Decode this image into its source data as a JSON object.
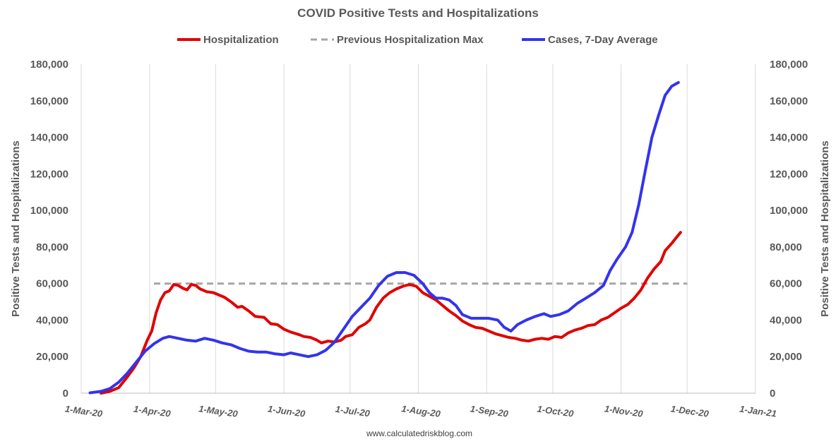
{
  "chart_data": {
    "type": "line",
    "title": "COVID Positive Tests and Hospitalizations",
    "ylabel": "Positive Tests and Hospitalizations",
    "ylabel_right": "Positive Tests and Hospitalizations",
    "xlabel": "",
    "ylim": [
      0,
      180000
    ],
    "y_ticks": [
      0,
      20000,
      40000,
      60000,
      80000,
      100000,
      120000,
      140000,
      160000,
      180000
    ],
    "y_tick_labels": [
      "0",
      "20,000",
      "40,000",
      "60,000",
      "80,000",
      "100,000",
      "120,000",
      "140,000",
      "160,000",
      "180,000"
    ],
    "xlim": [
      "2020-03-01",
      "2021-01-01"
    ],
    "x_ticks": [
      "2020-03-01",
      "2020-04-01",
      "2020-05-01",
      "2020-06-01",
      "2020-07-01",
      "2020-08-01",
      "2020-09-01",
      "2020-10-01",
      "2020-11-01",
      "2020-12-01",
      "2021-01-01"
    ],
    "x_tick_labels": [
      "1-Mar-20",
      "1-Apr-20",
      "1-May-20",
      "1-Jun-20",
      "1-Jul-20",
      "1-Aug-20",
      "1-Sep-20",
      "1-Oct-20",
      "1-Nov-20",
      "1-Dec-20",
      "1-Jan-21"
    ],
    "grid": "vertical",
    "legend_position": "top",
    "footer": "www.calculatedriskblog.com",
    "series": [
      {
        "name": "Hospitalization",
        "color": "#e00000",
        "style": "solid",
        "points": [
          [
            "2020-03-10",
            0
          ],
          [
            "2020-03-14",
            1000
          ],
          [
            "2020-03-18",
            3000
          ],
          [
            "2020-03-22",
            9000
          ],
          [
            "2020-03-25",
            14000
          ],
          [
            "2020-03-28",
            20000
          ],
          [
            "2020-03-31",
            29000
          ],
          [
            "2020-04-02",
            34000
          ],
          [
            "2020-04-04",
            44000
          ],
          [
            "2020-04-06",
            51000
          ],
          [
            "2020-04-08",
            55000
          ],
          [
            "2020-04-10",
            56000
          ],
          [
            "2020-04-12",
            59500
          ],
          [
            "2020-04-14",
            59000
          ],
          [
            "2020-04-16",
            57500
          ],
          [
            "2020-04-18",
            56500
          ],
          [
            "2020-04-20",
            59500
          ],
          [
            "2020-04-22",
            59000
          ],
          [
            "2020-04-24",
            57000
          ],
          [
            "2020-04-27",
            55500
          ],
          [
            "2020-04-30",
            55000
          ],
          [
            "2020-05-03",
            53500
          ],
          [
            "2020-05-05",
            52500
          ],
          [
            "2020-05-08",
            50000
          ],
          [
            "2020-05-11",
            47000
          ],
          [
            "2020-05-13",
            47500
          ],
          [
            "2020-05-16",
            45000
          ],
          [
            "2020-05-19",
            42000
          ],
          [
            "2020-05-23",
            41500
          ],
          [
            "2020-05-26",
            38000
          ],
          [
            "2020-05-29",
            37500
          ],
          [
            "2020-06-01",
            35000
          ],
          [
            "2020-06-04",
            33500
          ],
          [
            "2020-06-08",
            32000
          ],
          [
            "2020-06-10",
            31000
          ],
          [
            "2020-06-13",
            30500
          ],
          [
            "2020-06-16",
            29000
          ],
          [
            "2020-06-18",
            27500
          ],
          [
            "2020-06-21",
            28500
          ],
          [
            "2020-06-24",
            28000
          ],
          [
            "2020-06-27",
            29000
          ],
          [
            "2020-06-29",
            31000
          ],
          [
            "2020-07-02",
            32000
          ],
          [
            "2020-07-05",
            36000
          ],
          [
            "2020-07-08",
            38000
          ],
          [
            "2020-07-10",
            40000
          ],
          [
            "2020-07-13",
            47000
          ],
          [
            "2020-07-16",
            52000
          ],
          [
            "2020-07-19",
            55000
          ],
          [
            "2020-07-22",
            57000
          ],
          [
            "2020-07-25",
            58500
          ],
          [
            "2020-07-28",
            59500
          ],
          [
            "2020-07-31",
            58500
          ],
          [
            "2020-08-03",
            55000
          ],
          [
            "2020-08-06",
            53000
          ],
          [
            "2020-08-09",
            51000
          ],
          [
            "2020-08-12",
            48000
          ],
          [
            "2020-08-15",
            45000
          ],
          [
            "2020-08-18",
            42500
          ],
          [
            "2020-08-21",
            39500
          ],
          [
            "2020-08-24",
            37500
          ],
          [
            "2020-08-27",
            36000
          ],
          [
            "2020-08-30",
            35500
          ],
          [
            "2020-09-02",
            34000
          ],
          [
            "2020-09-05",
            32500
          ],
          [
            "2020-09-08",
            31500
          ],
          [
            "2020-09-11",
            30500
          ],
          [
            "2020-09-14",
            30000
          ],
          [
            "2020-09-17",
            29000
          ],
          [
            "2020-09-20",
            28500
          ],
          [
            "2020-09-23",
            29500
          ],
          [
            "2020-09-26",
            30000
          ],
          [
            "2020-09-29",
            29500
          ],
          [
            "2020-10-02",
            31000
          ],
          [
            "2020-10-05",
            30500
          ],
          [
            "2020-10-08",
            33000
          ],
          [
            "2020-10-11",
            34500
          ],
          [
            "2020-10-14",
            35500
          ],
          [
            "2020-10-17",
            37000
          ],
          [
            "2020-10-20",
            37500
          ],
          [
            "2020-10-23",
            40000
          ],
          [
            "2020-10-26",
            41500
          ],
          [
            "2020-10-29",
            44000
          ],
          [
            "2020-11-01",
            46500
          ],
          [
            "2020-11-04",
            48500
          ],
          [
            "2020-11-07",
            52000
          ],
          [
            "2020-11-10",
            56500
          ],
          [
            "2020-11-13",
            63000
          ],
          [
            "2020-11-16",
            68000
          ],
          [
            "2020-11-19",
            72000
          ],
          [
            "2020-11-21",
            78000
          ],
          [
            "2020-11-24",
            82000
          ],
          [
            "2020-11-26",
            85000
          ],
          [
            "2020-11-28",
            88000
          ]
        ]
      },
      {
        "name": "Previous Hospitalization Max",
        "color": "#a6a6a6",
        "style": "dashed",
        "points": [
          [
            "2020-04-03",
            60000
          ],
          [
            "2020-12-01",
            60000
          ]
        ]
      },
      {
        "name": "Cases, 7-Day Average",
        "color": "#3333ee",
        "style": "solid",
        "points": [
          [
            "2020-03-05",
            200
          ],
          [
            "2020-03-10",
            1000
          ],
          [
            "2020-03-14",
            2500
          ],
          [
            "2020-03-18",
            6000
          ],
          [
            "2020-03-22",
            11000
          ],
          [
            "2020-03-26",
            17000
          ],
          [
            "2020-03-30",
            23000
          ],
          [
            "2020-04-03",
            27000
          ],
          [
            "2020-04-07",
            30000
          ],
          [
            "2020-04-10",
            31000
          ],
          [
            "2020-04-14",
            30000
          ],
          [
            "2020-04-18",
            29000
          ],
          [
            "2020-04-22",
            28500
          ],
          [
            "2020-04-26",
            30000
          ],
          [
            "2020-04-30",
            29000
          ],
          [
            "2020-05-04",
            27500
          ],
          [
            "2020-05-08",
            26500
          ],
          [
            "2020-05-12",
            24500
          ],
          [
            "2020-05-16",
            23000
          ],
          [
            "2020-05-20",
            22500
          ],
          [
            "2020-05-24",
            22500
          ],
          [
            "2020-05-28",
            21500
          ],
          [
            "2020-06-01",
            21000
          ],
          [
            "2020-06-04",
            22000
          ],
          [
            "2020-06-08",
            21000
          ],
          [
            "2020-06-12",
            20000
          ],
          [
            "2020-06-16",
            21000
          ],
          [
            "2020-06-20",
            23500
          ],
          [
            "2020-06-24",
            28000
          ],
          [
            "2020-06-28",
            35000
          ],
          [
            "2020-07-02",
            42000
          ],
          [
            "2020-07-06",
            47000
          ],
          [
            "2020-07-10",
            52000
          ],
          [
            "2020-07-14",
            59000
          ],
          [
            "2020-07-18",
            64000
          ],
          [
            "2020-07-22",
            66000
          ],
          [
            "2020-07-26",
            66000
          ],
          [
            "2020-07-30",
            64500
          ],
          [
            "2020-08-03",
            60000
          ],
          [
            "2020-08-06",
            55000
          ],
          [
            "2020-08-09",
            52000
          ],
          [
            "2020-08-12",
            52000
          ],
          [
            "2020-08-15",
            51000
          ],
          [
            "2020-08-18",
            48000
          ],
          [
            "2020-08-21",
            43000
          ],
          [
            "2020-08-25",
            41000
          ],
          [
            "2020-08-29",
            41000
          ],
          [
            "2020-09-02",
            41000
          ],
          [
            "2020-09-06",
            40000
          ],
          [
            "2020-09-09",
            36000
          ],
          [
            "2020-09-12",
            34000
          ],
          [
            "2020-09-15",
            37500
          ],
          [
            "2020-09-19",
            40000
          ],
          [
            "2020-09-23",
            42000
          ],
          [
            "2020-09-27",
            43500
          ],
          [
            "2020-09-30",
            42000
          ],
          [
            "2020-10-04",
            43000
          ],
          [
            "2020-10-08",
            45000
          ],
          [
            "2020-10-12",
            49000
          ],
          [
            "2020-10-16",
            52000
          ],
          [
            "2020-10-20",
            55000
          ],
          [
            "2020-10-24",
            59000
          ],
          [
            "2020-10-27",
            67000
          ],
          [
            "2020-10-30",
            73000
          ],
          [
            "2020-11-03",
            80000
          ],
          [
            "2020-11-06",
            88000
          ],
          [
            "2020-11-09",
            103000
          ],
          [
            "2020-11-12",
            122000
          ],
          [
            "2020-11-15",
            140000
          ],
          [
            "2020-11-18",
            152000
          ],
          [
            "2020-11-21",
            163000
          ],
          [
            "2020-11-24",
            168000
          ],
          [
            "2020-11-27",
            170000
          ]
        ]
      }
    ]
  }
}
